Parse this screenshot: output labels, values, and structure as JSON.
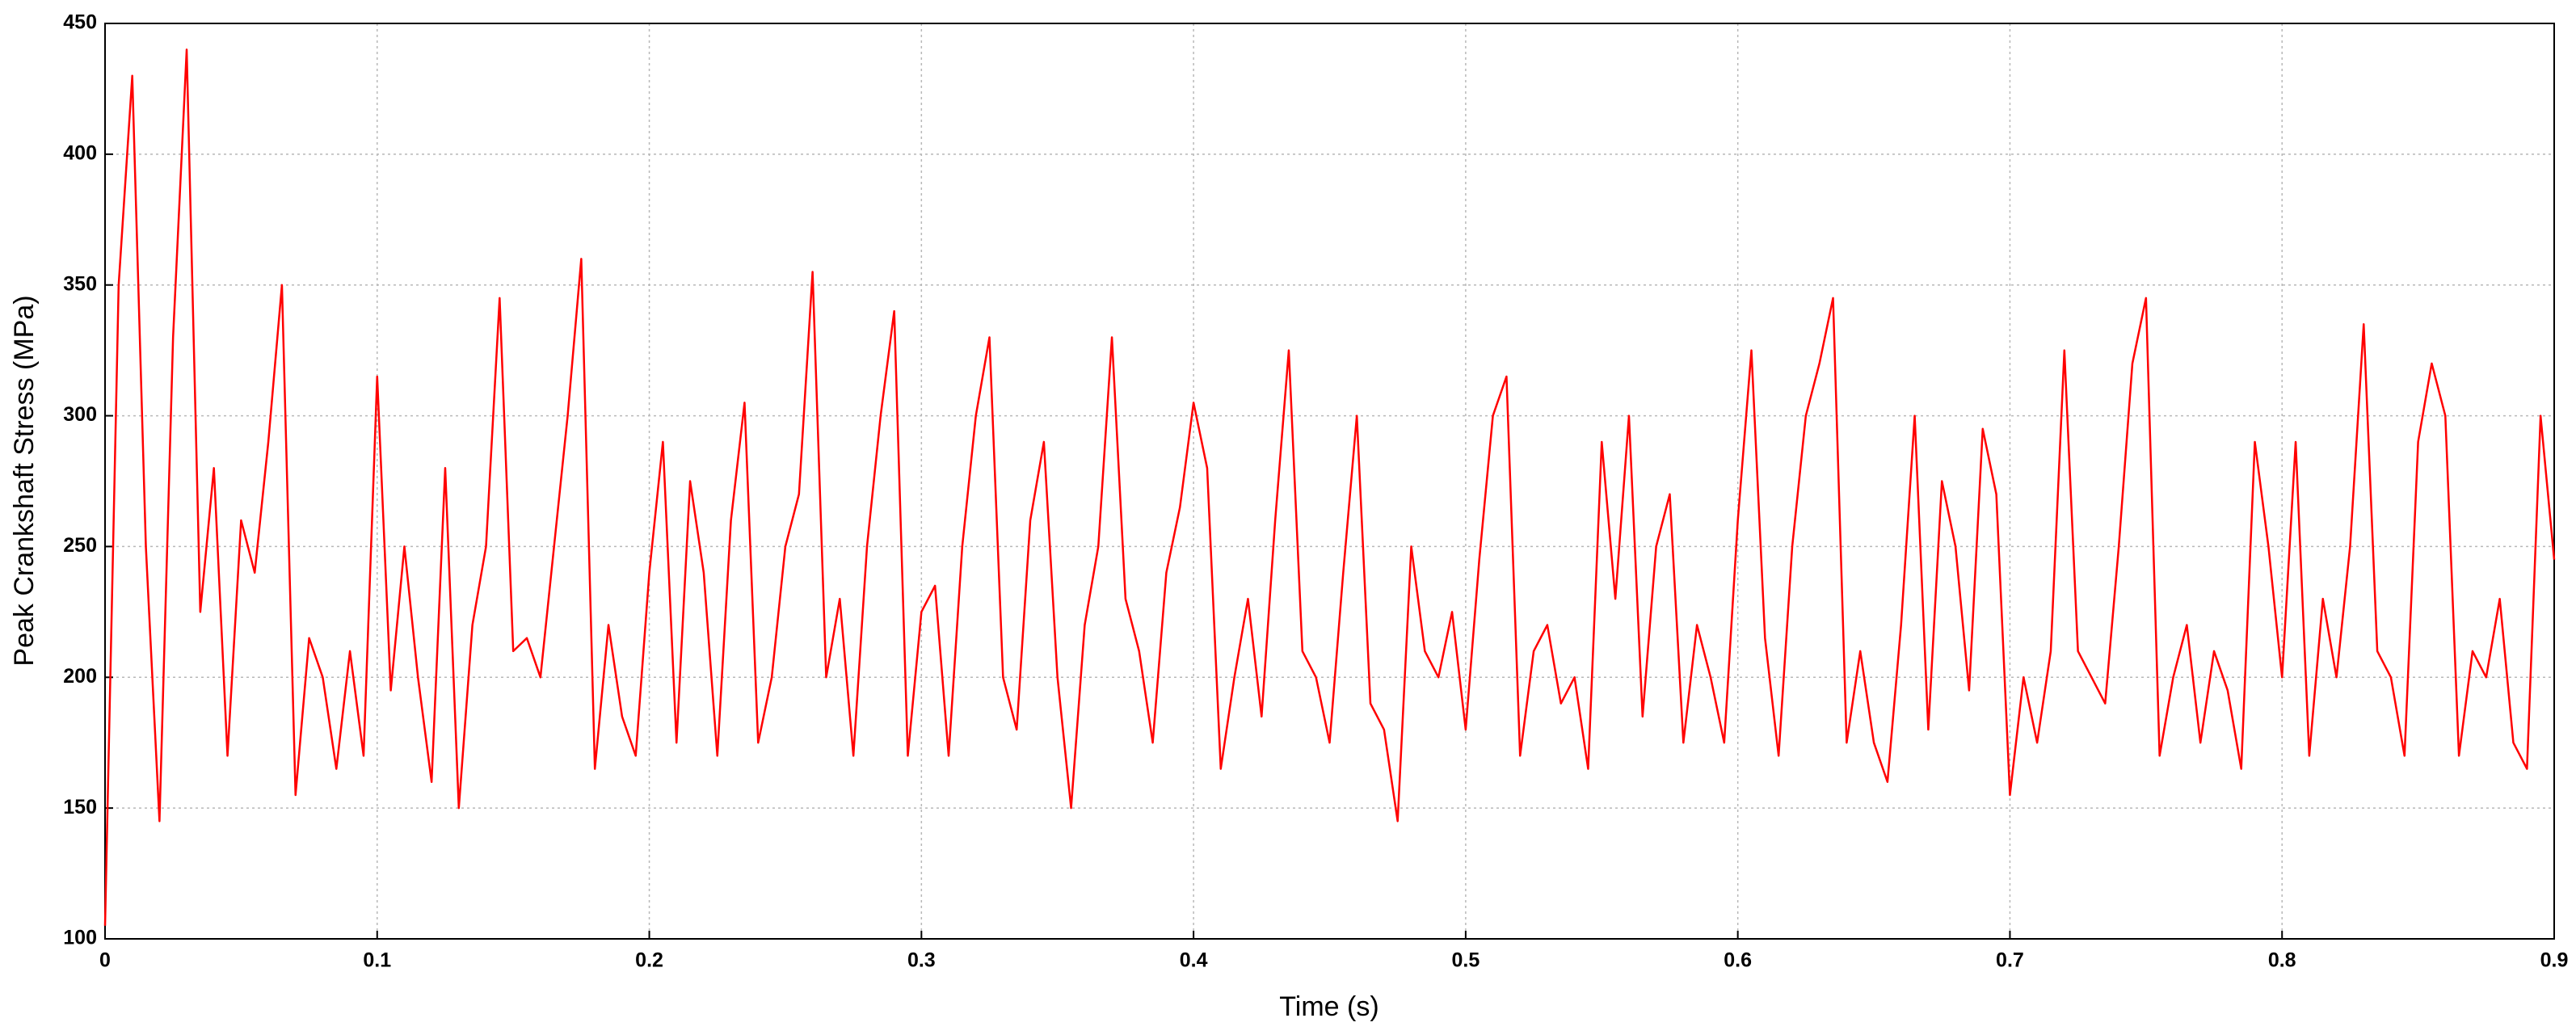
{
  "chart_data": {
    "type": "line",
    "x_label": "Time (s)",
    "y_label": "Peak Crankshaft Stress (MPa)",
    "color": "#ff0000",
    "grid": true,
    "xlim": [
      0,
      0.9
    ],
    "ylim": [
      100,
      450
    ],
    "xticks": [
      0,
      0.1,
      0.2,
      0.3,
      0.4,
      0.5,
      0.6,
      0.7,
      0.8,
      0.9
    ],
    "yticks": [
      100,
      150,
      200,
      250,
      300,
      350,
      400,
      450
    ],
    "x": [
      0,
      0.005,
      0.01,
      0.015,
      0.02,
      0.025,
      0.03,
      0.035,
      0.04,
      0.045,
      0.05,
      0.055,
      0.06,
      0.065,
      0.07,
      0.075,
      0.08,
      0.085,
      0.09,
      0.095,
      0.1,
      0.105,
      0.11,
      0.115,
      0.12,
      0.125,
      0.13,
      0.135,
      0.14,
      0.145,
      0.15,
      0.155,
      0.16,
      0.165,
      0.17,
      0.175,
      0.18,
      0.185,
      0.19,
      0.195,
      0.2,
      0.205,
      0.21,
      0.215,
      0.22,
      0.225,
      0.23,
      0.235,
      0.24,
      0.245,
      0.25,
      0.255,
      0.26,
      0.265,
      0.27,
      0.275,
      0.28,
      0.285,
      0.29,
      0.295,
      0.3,
      0.305,
      0.31,
      0.315,
      0.32,
      0.325,
      0.33,
      0.335,
      0.34,
      0.345,
      0.35,
      0.355,
      0.36,
      0.365,
      0.37,
      0.375,
      0.38,
      0.385,
      0.39,
      0.395,
      0.4,
      0.405,
      0.41,
      0.415,
      0.42,
      0.425,
      0.43,
      0.435,
      0.44,
      0.445,
      0.45,
      0.455,
      0.46,
      0.465,
      0.47,
      0.475,
      0.48,
      0.485,
      0.49,
      0.495,
      0.5,
      0.505,
      0.51,
      0.515,
      0.52,
      0.525,
      0.53,
      0.535,
      0.54,
      0.545,
      0.55,
      0.555,
      0.56,
      0.565,
      0.57,
      0.575,
      0.58,
      0.585,
      0.59,
      0.595,
      0.6,
      0.605,
      0.61,
      0.615,
      0.62,
      0.625,
      0.63,
      0.635,
      0.64,
      0.645,
      0.65,
      0.655,
      0.66,
      0.665,
      0.67,
      0.675,
      0.68,
      0.685,
      0.69,
      0.695,
      0.7,
      0.705,
      0.71,
      0.715,
      0.72,
      0.725,
      0.73,
      0.735,
      0.74,
      0.745,
      0.75,
      0.755,
      0.76,
      0.765,
      0.77,
      0.775,
      0.78,
      0.785,
      0.79,
      0.795,
      0.8,
      0.805,
      0.81,
      0.815,
      0.82,
      0.825,
      0.83,
      0.835,
      0.84,
      0.845,
      0.85,
      0.855,
      0.86,
      0.865,
      0.87,
      0.875,
      0.88,
      0.885,
      0.89,
      0.895,
      0.9
    ],
    "values": [
      105,
      350,
      430,
      250,
      145,
      330,
      440,
      225,
      280,
      170,
      260,
      240,
      290,
      350,
      155,
      215,
      200,
      165,
      210,
      170,
      315,
      195,
      250,
      200,
      160,
      280,
      150,
      220,
      250,
      345,
      210,
      215,
      200,
      250,
      300,
      360,
      165,
      220,
      185,
      170,
      240,
      290,
      175,
      275,
      240,
      170,
      260,
      305,
      175,
      200,
      250,
      270,
      355,
      200,
      230,
      170,
      250,
      300,
      340,
      170,
      225,
      235,
      170,
      250,
      300,
      330,
      200,
      180,
      260,
      290,
      200,
      150,
      220,
      250,
      330,
      230,
      210,
      175,
      240,
      265,
      305,
      280,
      165,
      200,
      230,
      185,
      260,
      325,
      210,
      200,
      175,
      240,
      300,
      190,
      180,
      145,
      250,
      210,
      200,
      225,
      180,
      245,
      300,
      315,
      170,
      210,
      220,
      190,
      200,
      165,
      290,
      230,
      300,
      185,
      250,
      270,
      175,
      220,
      200,
      175,
      260,
      325,
      215,
      170,
      250,
      300,
      320,
      345,
      175,
      210,
      175,
      160,
      220,
      300,
      180,
      275,
      250,
      195,
      295,
      270,
      155,
      200,
      175,
      210,
      325,
      210,
      200,
      190,
      250,
      320,
      345,
      170,
      200,
      220,
      175,
      210,
      195,
      165,
      290,
      250,
      200,
      290,
      170,
      230,
      200,
      250,
      335,
      210,
      200,
      170,
      290,
      320,
      300,
      170,
      210,
      200,
      230,
      175,
      165,
      300,
      245
    ]
  }
}
